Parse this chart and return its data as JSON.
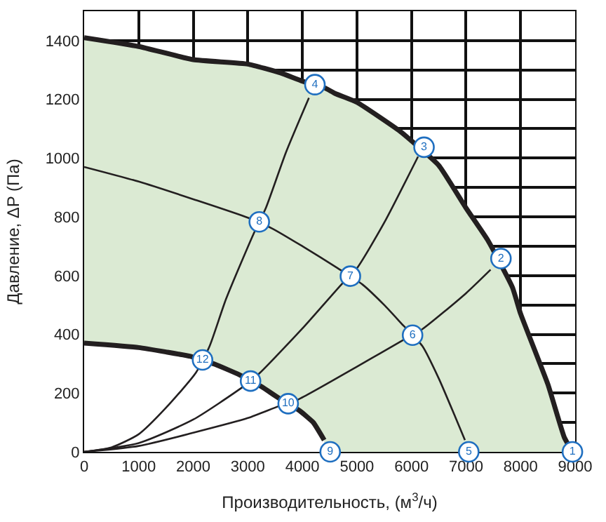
{
  "chart_data": {
    "type": "line",
    "xlabel": "Производительность, (м$^{3}$/ч)",
    "ylabel": "Давление, ΔP (Па)",
    "xlim": [
      0,
      9000
    ],
    "ylim": [
      0,
      1500
    ],
    "xticks": [
      0,
      1000,
      2000,
      3000,
      4000,
      5000,
      6000,
      7000,
      8000,
      9000
    ],
    "yticks": [
      0,
      {
        "value": 100,
        "label": null
      },
      200,
      {
        "value": 300,
        "label": null
      },
      400,
      {
        "value": 500,
        "label": null
      },
      600,
      {
        "value": 700,
        "label": null
      },
      800,
      {
        "value": 900,
        "label": null
      },
      1000,
      {
        "value": 1100,
        "label": null
      },
      1200,
      {
        "value": 1300,
        "label": null
      },
      1400,
      {
        "value": 1500,
        "label": null
      }
    ],
    "grid": true,
    "marker": "none",
    "line_style": "solid",
    "series": [
      {
        "type": "area",
        "color": "#dbead3",
        "x": [
          0,
          1000,
          2000,
          3000,
          3600,
          4000,
          4400,
          4600,
          5000,
          5800,
          6500,
          7000,
          7400,
          7850,
          8000,
          8500,
          8800,
          8950
        ],
        "values": [
          1410,
          1380,
          1335,
          1320,
          1290,
          1262,
          1240,
          1220,
          1190,
          1090,
          975,
          830,
          720,
          560,
          470,
          230,
          50,
          0
        ]
      },
      {
        "type": "area",
        "color": "#ffffff",
        "x": [
          0,
          1000,
          1500,
          1950,
          2400,
          2850,
          3250,
          3550,
          3950,
          4200,
          4400
        ],
        "values": [
          370,
          355,
          340,
          325,
          298,
          262,
          222,
          185,
          140,
          100,
          40
        ]
      },
      {
        "color": "#231f20",
        "x": [
          0,
          1000,
          2000,
          3000,
          3450,
          4000,
          4650,
          5100,
          5500,
          5850,
          6200,
          6500,
          6800,
          6980
        ],
        "values": [
          970,
          920,
          860,
          797,
          760,
          700,
          625,
          570,
          500,
          430,
          360,
          250,
          120,
          40
        ]
      },
      {
        "color": "#231f20",
        "x": [
          0,
          500,
          1000,
          1500,
          2050,
          2300,
          2600,
          3100,
          3330,
          3700,
          4120
        ],
        "values": [
          0,
          15,
          60,
          150,
          270,
          360,
          520,
          740,
          830,
          1020,
          1205
        ]
      },
      {
        "color": "#231f20",
        "x": [
          0,
          1000,
          2000,
          2900,
          3200,
          4000,
          4740,
          5000,
          5500,
          6120
        ],
        "values": [
          0,
          30,
          110,
          220,
          265,
          420,
          575,
          625,
          780,
          1005
        ]
      },
      {
        "color": "#231f20",
        "x": [
          0,
          1000,
          2000,
          3000,
          3560,
          3920,
          5000,
          5860,
          6180,
          7000,
          7450
        ],
        "values": [
          0,
          20,
          65,
          115,
          155,
          178,
          290,
          382,
          415,
          540,
          620
        ]
      }
    ],
    "annotations": [
      {
        "text": "1",
        "x": 8950,
        "y": 0
      },
      {
        "text": "2",
        "x": 7640,
        "y": 658
      },
      {
        "text": "3",
        "x": 6230,
        "y": 1037
      },
      {
        "text": "4",
        "x": 4230,
        "y": 1250
      },
      {
        "text": "5",
        "x": 7050,
        "y": 0
      },
      {
        "text": "6",
        "x": 6020,
        "y": 397
      },
      {
        "text": "7",
        "x": 4880,
        "y": 598
      },
      {
        "text": "8",
        "x": 3210,
        "y": 783
      },
      {
        "text": "9",
        "x": 4510,
        "y": 0
      },
      {
        "text": "10",
        "x": 3740,
        "y": 164
      },
      {
        "text": "11",
        "x": 3050,
        "y": 241
      },
      {
        "text": "12",
        "x": 2170,
        "y": 313
      }
    ]
  }
}
